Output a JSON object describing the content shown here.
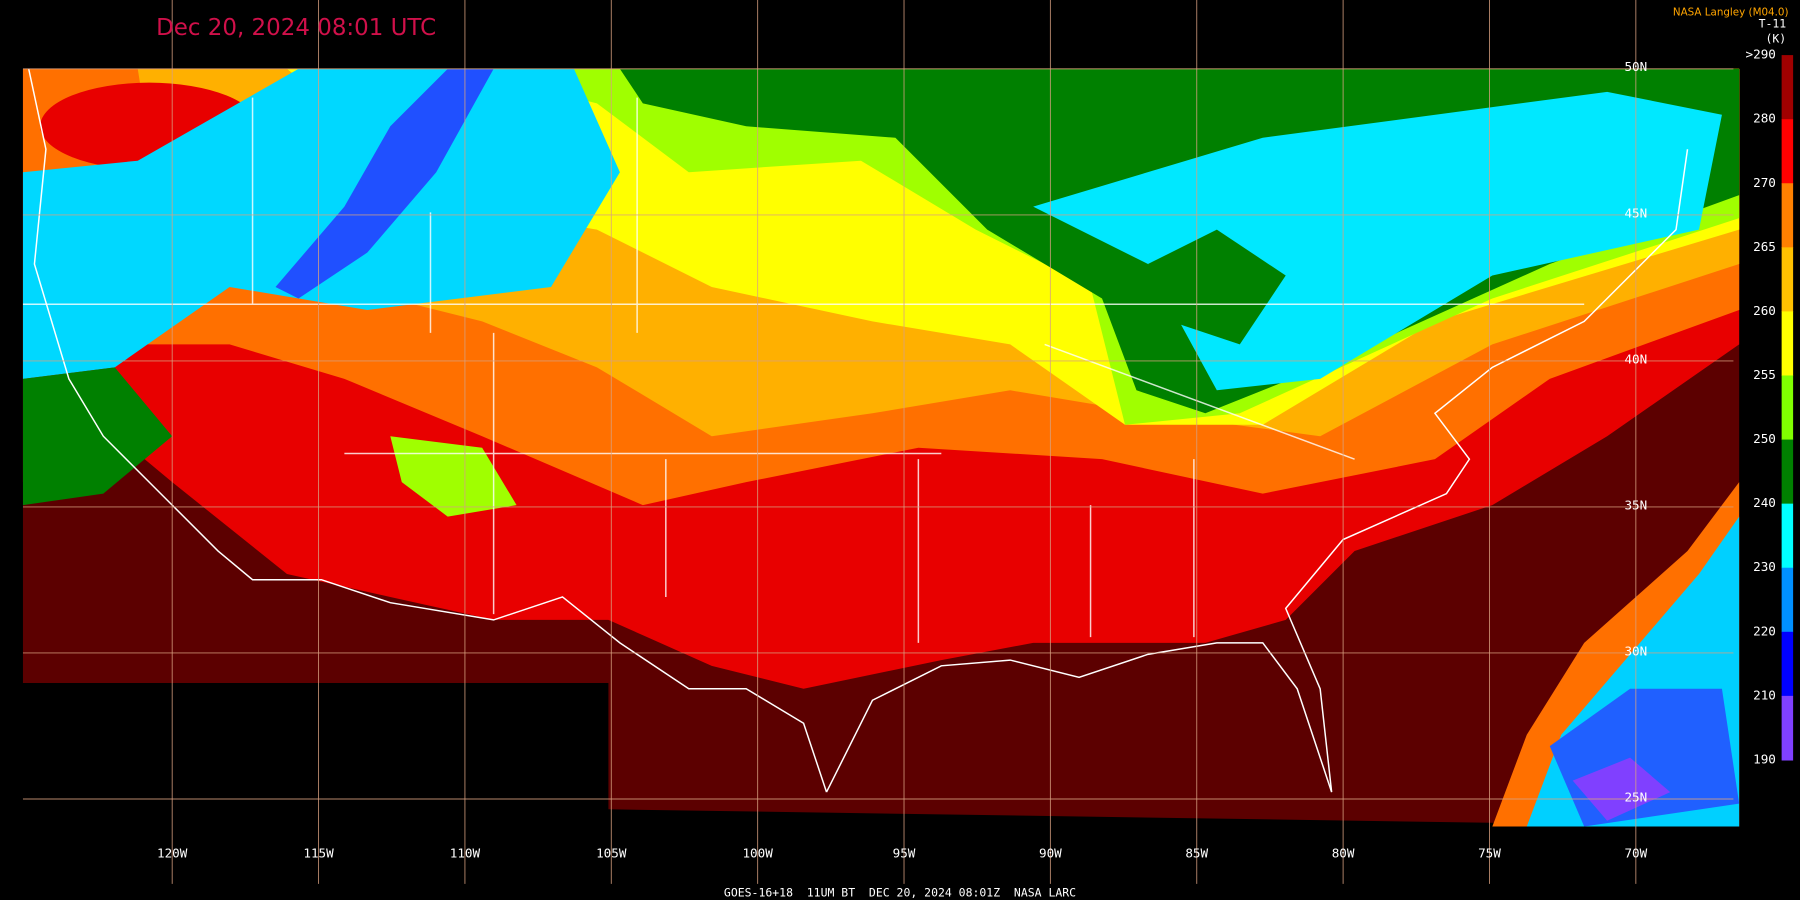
{
  "header": {
    "title": "Dec 20, 2024 08:01 UTC",
    "credit": "NASA Langley (M04.0)"
  },
  "colorbar": {
    "title": "T-11",
    "unit": "(K)",
    "labels": [
      ">290",
      "280",
      "270",
      "265",
      "260",
      "255",
      "250",
      "240",
      "230",
      "220",
      "210",
      "190"
    ],
    "colors": [
      "#a00000",
      "#ff0000",
      "#ff8000",
      "#ffc000",
      "#ffff00",
      "#80ff00",
      "#008000",
      "#00ffff",
      "#0090ff",
      "#0000ff",
      "#8040ff"
    ]
  },
  "map": {
    "longitude_labels": [
      "120W",
      "115W",
      "110W",
      "105W",
      "100W",
      "95W",
      "90W",
      "85W",
      "80W",
      "75W",
      "70W"
    ],
    "latitude_labels": [
      "50N",
      "45N",
      "40N",
      "35N",
      "30N",
      "25N"
    ]
  },
  "footer": "GOES-16+18  11UM BT  DEC 20, 2024 08:01Z  NASA LARC"
}
